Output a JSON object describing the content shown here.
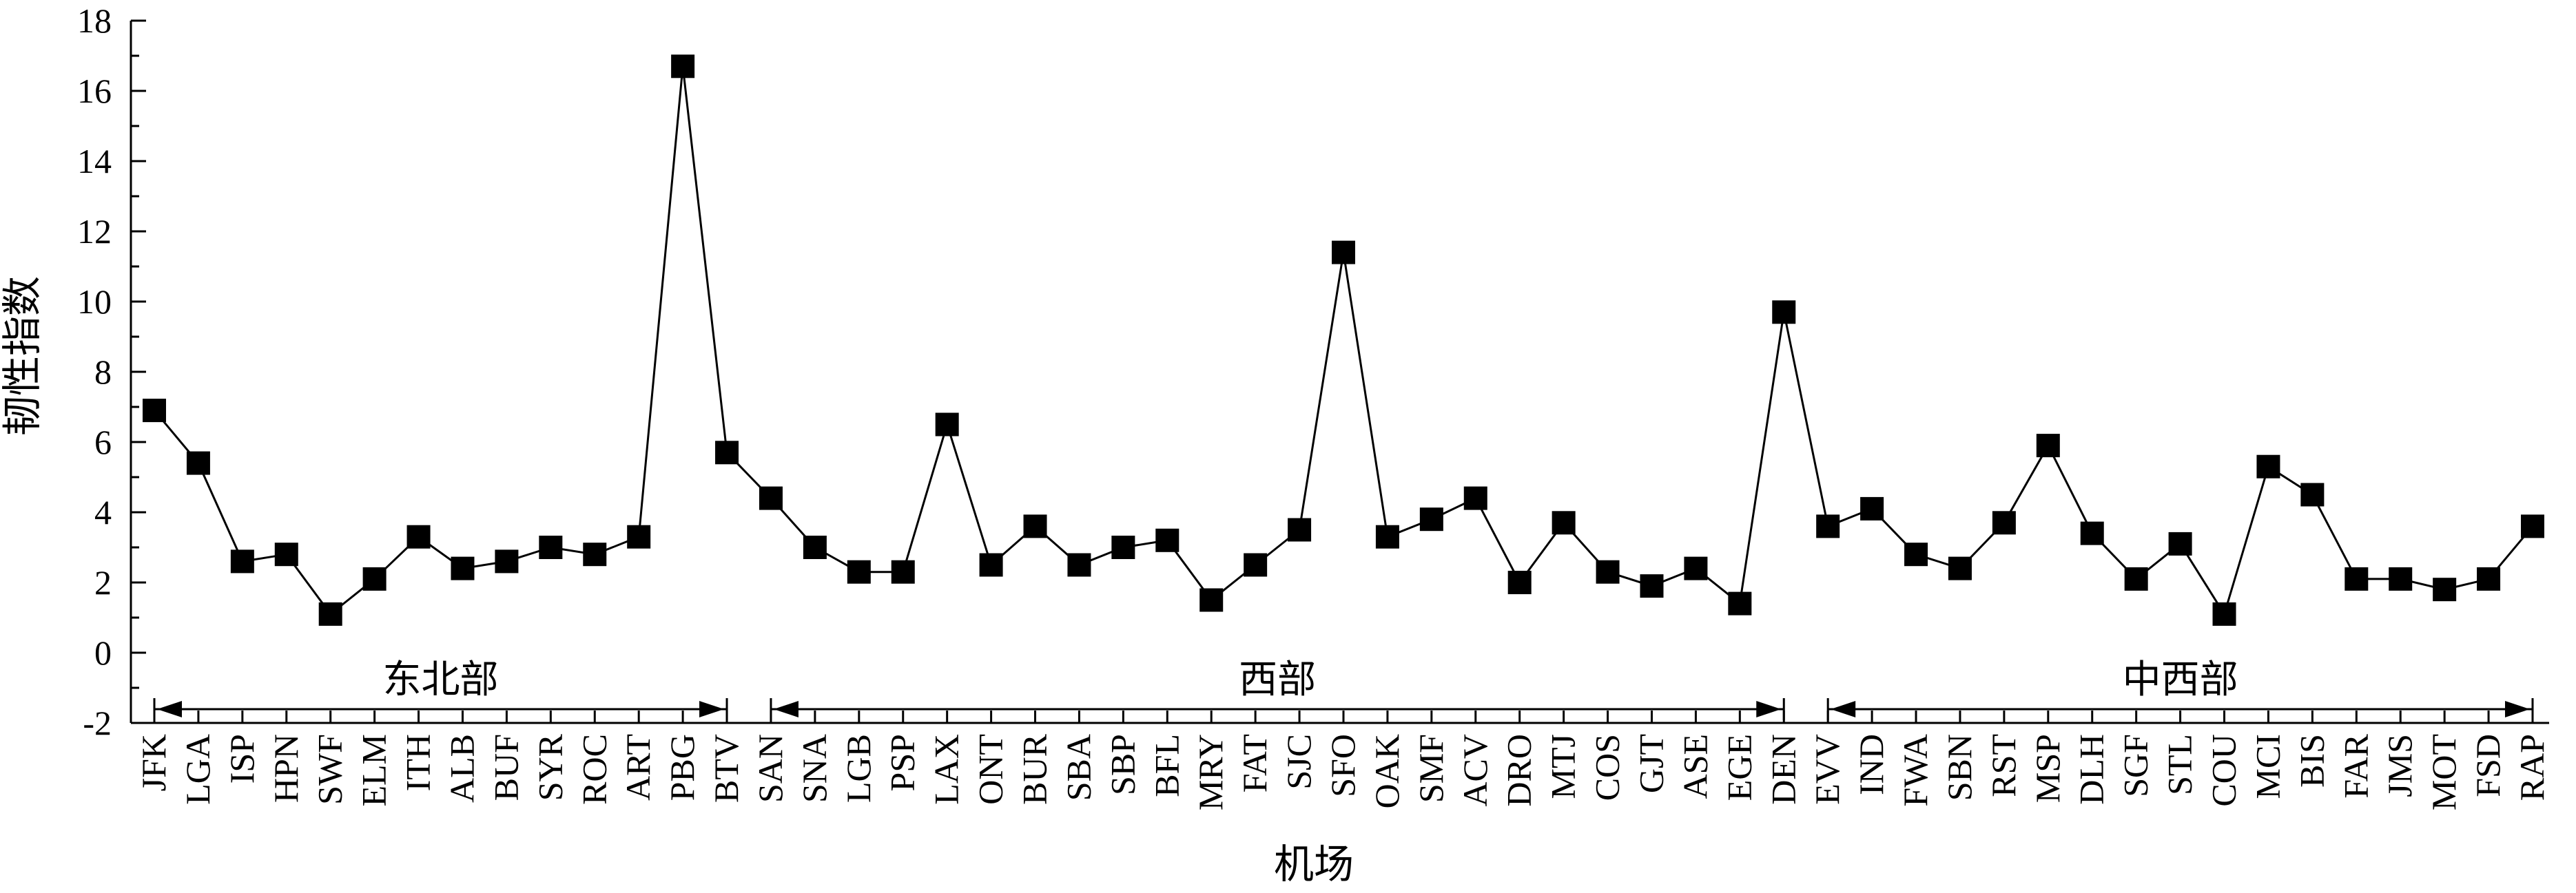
{
  "chart_data": {
    "type": "line",
    "xlabel": "机场",
    "ylabel": "韧性指数",
    "ylim": [
      -2,
      18
    ],
    "yticks": [
      -2,
      0,
      2,
      4,
      6,
      8,
      10,
      12,
      14,
      16,
      18
    ],
    "grid": false,
    "marker": "square",
    "categories": [
      "JFK",
      "LGA",
      "ISP",
      "HPN",
      "SWF",
      "ELM",
      "ITH",
      "ALB",
      "BUF",
      "SYR",
      "ROC",
      "ART",
      "PBG",
      "BTV",
      "SAN",
      "SNA",
      "LGB",
      "PSP",
      "LAX",
      "ONT",
      "BUR",
      "SBA",
      "SBP",
      "BFL",
      "MRY",
      "FAT",
      "SJC",
      "SFO",
      "OAK",
      "SMF",
      "ACV",
      "DRO",
      "MTJ",
      "COS",
      "GJT",
      "ASE",
      "EGE",
      "DEN",
      "EVV",
      "IND",
      "FWA",
      "SBN",
      "RST",
      "MSP",
      "DLH",
      "SGF",
      "STL",
      "COU",
      "MCI",
      "BIS",
      "FAR",
      "JMS",
      "MOT",
      "FSD",
      "RAP"
    ],
    "values": [
      6.9,
      5.4,
      2.6,
      2.8,
      1.1,
      2.1,
      3.3,
      2.4,
      2.6,
      3.0,
      2.8,
      3.3,
      16.7,
      5.7,
      4.4,
      3.0,
      2.3,
      2.3,
      6.5,
      2.5,
      3.6,
      2.5,
      3.0,
      3.2,
      1.5,
      2.5,
      3.5,
      11.4,
      3.3,
      3.8,
      4.4,
      2.0,
      3.7,
      2.3,
      1.9,
      2.4,
      1.4,
      9.7,
      3.6,
      4.1,
      2.8,
      2.4,
      3.7,
      5.9,
      3.4,
      2.1,
      3.1,
      1.1,
      5.3,
      4.5,
      2.1,
      2.1,
      1.8,
      2.1,
      3.6
    ],
    "groups": [
      {
        "label": "东北部",
        "from": "JFK",
        "to": "BTV"
      },
      {
        "label": "西部",
        "from": "SAN",
        "to": "DEN"
      },
      {
        "label": "中西部",
        "from": "EVV",
        "to": "RAP"
      }
    ]
  }
}
